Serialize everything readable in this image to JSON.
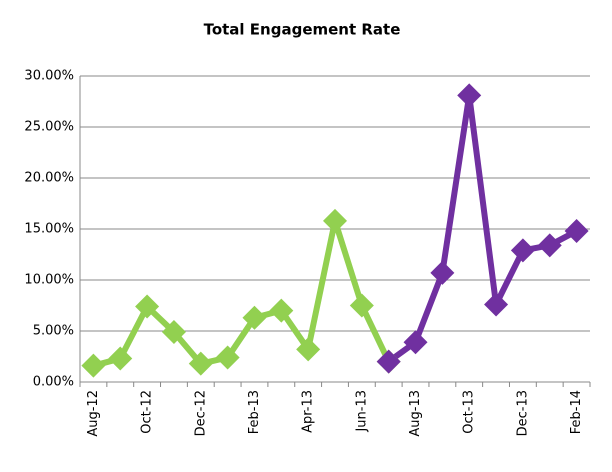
{
  "chart_data": {
    "type": "line",
    "title": "Total Engagement Rate",
    "categories": [
      "Aug-12",
      null,
      "Oct-12",
      null,
      "Dec-12",
      null,
      "Feb-13",
      null,
      "Apr-13",
      null,
      "Jun-13",
      null,
      "Aug-13",
      null,
      "Oct-13",
      null,
      "Dec-13",
      null,
      "Feb-14"
    ],
    "series": [
      {
        "color": "#92d050",
        "values": [
          1.6,
          2.3,
          7.4,
          4.9,
          1.8,
          2.4,
          6.3,
          7.0,
          3.2,
          15.8,
          7.5,
          2.0,
          null,
          null,
          null,
          null,
          null,
          null,
          null
        ]
      },
      {
        "color": "#7030a0",
        "values": [
          null,
          null,
          null,
          null,
          null,
          null,
          null,
          null,
          null,
          null,
          null,
          2.0,
          3.9,
          10.7,
          28.1,
          7.6,
          12.9,
          13.4,
          14.8
        ]
      }
    ],
    "ylim": [
      0,
      30
    ],
    "yticks": [
      {
        "value": 0,
        "label": "0.00%"
      },
      {
        "value": 5,
        "label": "5.00%"
      },
      {
        "value": 10,
        "label": "10.00%"
      },
      {
        "value": 15,
        "label": "15.00%"
      },
      {
        "value": 20,
        "label": "20.00%"
      },
      {
        "value": 25,
        "label": "25.00%"
      },
      {
        "value": 30,
        "label": "30.00%"
      }
    ],
    "grid": true
  }
}
